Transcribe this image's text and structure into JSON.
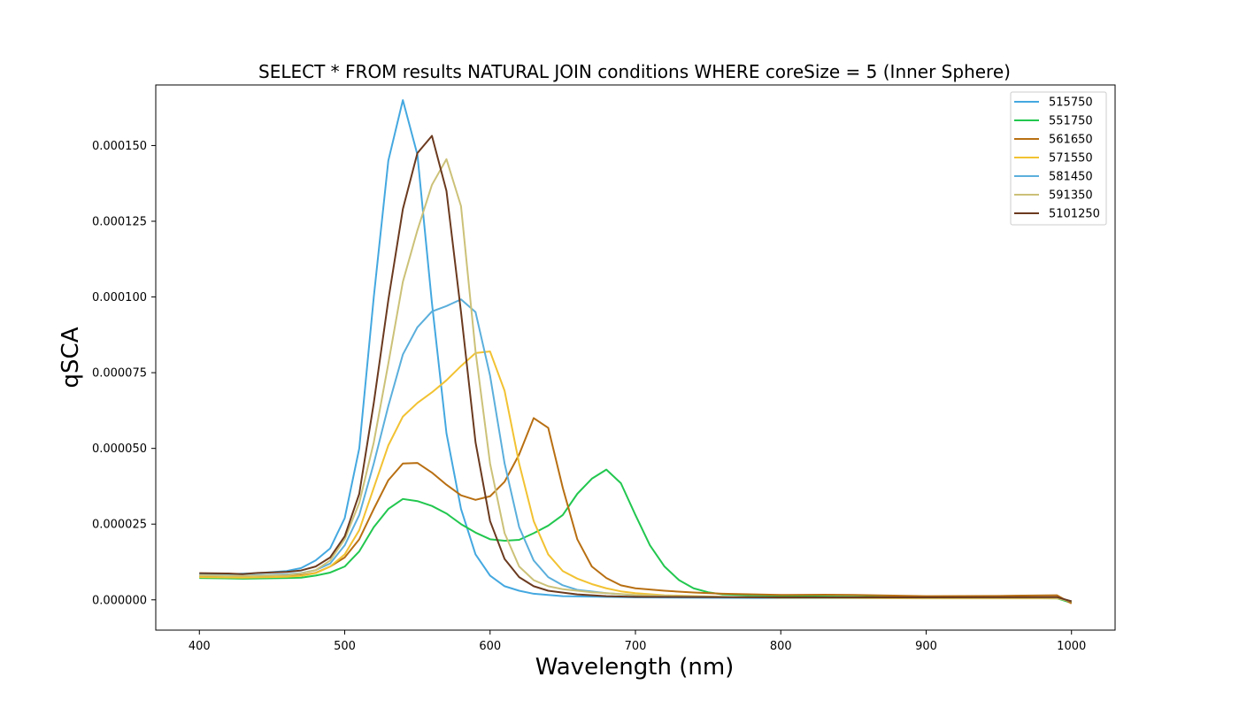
{
  "chart_data": {
    "type": "line",
    "title": "SELECT * FROM results NATURAL JOIN conditions WHERE coreSize = 5 (Inner Sphere)",
    "xlabel": "Wavelength (nm)",
    "ylabel": "qSCA",
    "xlim": [
      370,
      1030
    ],
    "ylim": [
      -1e-05,
      0.00017
    ],
    "xticks": [
      400,
      500,
      600,
      700,
      800,
      900,
      1000
    ],
    "xtick_labels": [
      "400",
      "500",
      "600",
      "700",
      "800",
      "900",
      "1000"
    ],
    "yticks": [
      0.0,
      2.5e-05,
      5e-05,
      7.5e-05,
      0.0001,
      0.000125,
      0.00015
    ],
    "ytick_labels": [
      "0.000000",
      "0.000025",
      "0.000050",
      "0.000075",
      "0.000100",
      "0.000125",
      "0.000150"
    ],
    "legend_position": "top-right",
    "grid": false,
    "series": [
      {
        "name": "515750",
        "color": "#44a8e0",
        "points": [
          [
            400,
            8.7e-06
          ],
          [
            420,
            8.5e-06
          ],
          [
            440,
            8.8e-06
          ],
          [
            460,
            9.5e-06
          ],
          [
            470,
            1.05e-05
          ],
          [
            480,
            1.3e-05
          ],
          [
            490,
            1.7e-05
          ],
          [
            500,
            2.7e-05
          ],
          [
            510,
            5e-05
          ],
          [
            520,
            0.0001
          ],
          [
            530,
            0.000145
          ],
          [
            540,
            0.000165
          ],
          [
            550,
            0.000147
          ],
          [
            560,
            9.8e-05
          ],
          [
            570,
            5.5e-05
          ],
          [
            580,
            3e-05
          ],
          [
            590,
            1.5e-05
          ],
          [
            600,
            8e-06
          ],
          [
            610,
            4.5e-06
          ],
          [
            620,
            3e-06
          ],
          [
            630,
            2e-06
          ],
          [
            650,
            1.2e-06
          ],
          [
            700,
            8e-07
          ],
          [
            800,
            6e-07
          ],
          [
            900,
            6e-07
          ],
          [
            990,
            7e-07
          ],
          [
            1000,
            -5e-07
          ]
        ]
      },
      {
        "name": "551750",
        "color": "#22c74f",
        "points": [
          [
            400,
            7.2e-06
          ],
          [
            430,
            7e-06
          ],
          [
            460,
            7.2e-06
          ],
          [
            470,
            7.3e-06
          ],
          [
            480,
            8e-06
          ],
          [
            490,
            9e-06
          ],
          [
            500,
            1.1e-05
          ],
          [
            510,
            1.6e-05
          ],
          [
            520,
            2.4e-05
          ],
          [
            530,
            3e-05
          ],
          [
            540,
            3.33e-05
          ],
          [
            550,
            3.26e-05
          ],
          [
            560,
            3.1e-05
          ],
          [
            570,
            2.85e-05
          ],
          [
            580,
            2.5e-05
          ],
          [
            590,
            2.22e-05
          ],
          [
            600,
            2e-05
          ],
          [
            610,
            1.95e-05
          ],
          [
            620,
            1.98e-05
          ],
          [
            630,
            2.2e-05
          ],
          [
            640,
            2.45e-05
          ],
          [
            650,
            2.8e-05
          ],
          [
            660,
            3.5e-05
          ],
          [
            670,
            4e-05
          ],
          [
            680,
            4.3e-05
          ],
          [
            690,
            3.85e-05
          ],
          [
            700,
            2.8e-05
          ],
          [
            710,
            1.8e-05
          ],
          [
            720,
            1.1e-05
          ],
          [
            730,
            6.5e-06
          ],
          [
            740,
            3.8e-06
          ],
          [
            750,
            2.5e-06
          ],
          [
            760,
            1.8e-06
          ],
          [
            800,
            1.2e-06
          ],
          [
            900,
            8e-07
          ],
          [
            990,
            5e-07
          ],
          [
            1000,
            -1e-06
          ]
        ]
      },
      {
        "name": "561650",
        "color": "#b86f12",
        "points": [
          [
            400,
            7.8e-06
          ],
          [
            430,
            7.5e-06
          ],
          [
            460,
            7.8e-06
          ],
          [
            470,
            8.1e-06
          ],
          [
            480,
            8.9e-06
          ],
          [
            490,
            1.1e-05
          ],
          [
            500,
            1.4e-05
          ],
          [
            510,
            2e-05
          ],
          [
            520,
            3e-05
          ],
          [
            530,
            3.95e-05
          ],
          [
            540,
            4.5e-05
          ],
          [
            550,
            4.52e-05
          ],
          [
            560,
            4.2e-05
          ],
          [
            570,
            3.8e-05
          ],
          [
            580,
            3.45e-05
          ],
          [
            590,
            3.3e-05
          ],
          [
            600,
            3.42e-05
          ],
          [
            610,
            3.9e-05
          ],
          [
            620,
            4.8e-05
          ],
          [
            630,
            6e-05
          ],
          [
            640,
            5.68e-05
          ],
          [
            650,
            3.7e-05
          ],
          [
            660,
            2e-05
          ],
          [
            670,
            1.1e-05
          ],
          [
            680,
            7.2e-06
          ],
          [
            690,
            4.8e-06
          ],
          [
            700,
            3.8e-06
          ],
          [
            720,
            3e-06
          ],
          [
            740,
            2.4e-06
          ],
          [
            760,
            2e-06
          ],
          [
            800,
            1.6e-06
          ],
          [
            830,
            1.7e-06
          ],
          [
            850,
            1.6e-06
          ],
          [
            900,
            1.2e-06
          ],
          [
            950,
            1.3e-06
          ],
          [
            990,
            1.5e-06
          ],
          [
            1000,
            -1.2e-06
          ]
        ]
      },
      {
        "name": "571550",
        "color": "#f2c232",
        "points": [
          [
            400,
            7.5e-06
          ],
          [
            430,
            7.3e-06
          ],
          [
            460,
            7.6e-06
          ],
          [
            470,
            7.9e-06
          ],
          [
            480,
            8.8e-06
          ],
          [
            490,
            1.1e-05
          ],
          [
            500,
            1.5e-05
          ],
          [
            510,
            2.3e-05
          ],
          [
            520,
            3.7e-05
          ],
          [
            530,
            5.1e-05
          ],
          [
            540,
            6.05e-05
          ],
          [
            550,
            6.5e-05
          ],
          [
            560,
            6.85e-05
          ],
          [
            570,
            7.25e-05
          ],
          [
            580,
            7.72e-05
          ],
          [
            590,
            8.15e-05
          ],
          [
            600,
            8.2e-05
          ],
          [
            610,
            6.9e-05
          ],
          [
            620,
            4.5e-05
          ],
          [
            630,
            2.6e-05
          ],
          [
            640,
            1.5e-05
          ],
          [
            650,
            9.5e-06
          ],
          [
            660,
            7e-06
          ],
          [
            670,
            5.2e-06
          ],
          [
            680,
            3.8e-06
          ],
          [
            690,
            2.8e-06
          ],
          [
            700,
            2.2e-06
          ],
          [
            720,
            1.5e-06
          ],
          [
            760,
            1e-06
          ],
          [
            800,
            7e-07
          ],
          [
            900,
            5e-07
          ],
          [
            990,
            5e-07
          ],
          [
            1000,
            -5e-07
          ]
        ]
      },
      {
        "name": "581450",
        "color": "#5bafdc",
        "points": [
          [
            400,
            8.2e-06
          ],
          [
            430,
            8e-06
          ],
          [
            460,
            8.4e-06
          ],
          [
            470,
            8.8e-06
          ],
          [
            480,
            9.8e-06
          ],
          [
            490,
            1.2e-05
          ],
          [
            500,
            1.8e-05
          ],
          [
            510,
            2.8e-05
          ],
          [
            520,
            4.5e-05
          ],
          [
            530,
            6.4e-05
          ],
          [
            540,
            8.1e-05
          ],
          [
            550,
            9e-05
          ],
          [
            560,
            9.52e-05
          ],
          [
            570,
            9.7e-05
          ],
          [
            580,
            9.92e-05
          ],
          [
            590,
            9.5e-05
          ],
          [
            600,
            7.4e-05
          ],
          [
            610,
            4.5e-05
          ],
          [
            620,
            2.4e-05
          ],
          [
            630,
            1.3e-05
          ],
          [
            640,
            7.5e-06
          ],
          [
            650,
            4.8e-06
          ],
          [
            660,
            3.3e-06
          ],
          [
            680,
            2.2e-06
          ],
          [
            700,
            1.5e-06
          ],
          [
            750,
            1e-06
          ],
          [
            800,
            8e-07
          ],
          [
            900,
            7e-07
          ],
          [
            990,
            7e-07
          ],
          [
            1000,
            -5e-07
          ]
        ]
      },
      {
        "name": "591350",
        "color": "#ccc178",
        "points": [
          [
            400,
            8.1e-06
          ],
          [
            430,
            7.9e-06
          ],
          [
            460,
            8.2e-06
          ],
          [
            470,
            8.7e-06
          ],
          [
            480,
            9.8e-06
          ],
          [
            490,
            1.3e-05
          ],
          [
            500,
            2e-05
          ],
          [
            510,
            3.2e-05
          ],
          [
            520,
            5.2e-05
          ],
          [
            530,
            7.8e-05
          ],
          [
            540,
            0.000105
          ],
          [
            550,
            0.000122
          ],
          [
            560,
            0.000137
          ],
          [
            570,
            0.0001455
          ],
          [
            580,
            0.00013
          ],
          [
            590,
            8.2e-05
          ],
          [
            600,
            4.5e-05
          ],
          [
            610,
            2.2e-05
          ],
          [
            620,
            1.1e-05
          ],
          [
            630,
            6.5e-06
          ],
          [
            640,
            4.5e-06
          ],
          [
            650,
            3.5e-06
          ],
          [
            670,
            2.5e-06
          ],
          [
            700,
            1.6e-06
          ],
          [
            750,
            1e-06
          ],
          [
            800,
            8e-07
          ],
          [
            900,
            6e-07
          ],
          [
            990,
            6e-07
          ],
          [
            1000,
            -5e-07
          ]
        ]
      },
      {
        "name": "5101250",
        "color": "#6b3a1f",
        "points": [
          [
            400,
            8.8e-06
          ],
          [
            420,
            8.7e-06
          ],
          [
            430,
            8.5e-06
          ],
          [
            440,
            8.9e-06
          ],
          [
            460,
            9.2e-06
          ],
          [
            470,
            9.7e-06
          ],
          [
            480,
            1.1e-05
          ],
          [
            490,
            1.4e-05
          ],
          [
            500,
            2.1e-05
          ],
          [
            510,
            3.5e-05
          ],
          [
            520,
            6.5e-05
          ],
          [
            530,
            9.9e-05
          ],
          [
            540,
            0.000129
          ],
          [
            550,
            0.0001475
          ],
          [
            560,
            0.0001532
          ],
          [
            570,
            0.000135
          ],
          [
            580,
            9.5e-05
          ],
          [
            590,
            5.2e-05
          ],
          [
            600,
            2.6e-05
          ],
          [
            610,
            1.35e-05
          ],
          [
            620,
            7.5e-06
          ],
          [
            630,
            4.5e-06
          ],
          [
            640,
            3e-06
          ],
          [
            660,
            1.8e-06
          ],
          [
            680,
            1.2e-06
          ],
          [
            700,
            1e-06
          ],
          [
            800,
            8e-07
          ],
          [
            900,
            8e-07
          ],
          [
            990,
            9e-07
          ],
          [
            1000,
            -5e-07
          ]
        ]
      }
    ]
  }
}
